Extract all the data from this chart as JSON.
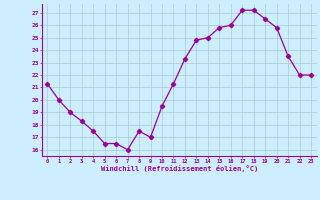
{
  "x": [
    0,
    1,
    2,
    3,
    4,
    5,
    6,
    7,
    8,
    9,
    10,
    11,
    12,
    13,
    14,
    15,
    16,
    17,
    18,
    19,
    20,
    21,
    22,
    23
  ],
  "y": [
    21.3,
    20.0,
    19.0,
    18.3,
    17.5,
    16.5,
    16.5,
    16.0,
    17.5,
    17.0,
    19.5,
    21.3,
    23.3,
    24.8,
    25.0,
    25.8,
    26.0,
    27.2,
    27.2,
    26.5,
    25.8,
    23.5,
    22.0,
    22.0
  ],
  "line_color": "#990099",
  "marker": "D",
  "markersize": 2.2,
  "linewidth": 0.9,
  "bg_color": "#cceeff",
  "grid_color": "#aacccc",
  "xlabel": "Windchill (Refroidissement éolien,°C)",
  "xlabel_color": "#990099",
  "tick_color": "#990099",
  "ylim": [
    15.5,
    27.7
  ],
  "yticks": [
    16,
    17,
    18,
    19,
    20,
    21,
    22,
    23,
    24,
    25,
    26,
    27
  ],
  "xticks": [
    0,
    1,
    2,
    3,
    4,
    5,
    6,
    7,
    8,
    9,
    10,
    11,
    12,
    13,
    14,
    15,
    16,
    17,
    18,
    19,
    20,
    21,
    22,
    23
  ],
  "xtick_labels": [
    "0",
    "1",
    "2",
    "3",
    "4",
    "5",
    "6",
    "7",
    "8",
    "9",
    "10",
    "11",
    "12",
    "13",
    "14",
    "15",
    "16",
    "17",
    "18",
    "19",
    "20",
    "21",
    "22",
    "23"
  ],
  "xlim": [
    -0.5,
    23.5
  ]
}
